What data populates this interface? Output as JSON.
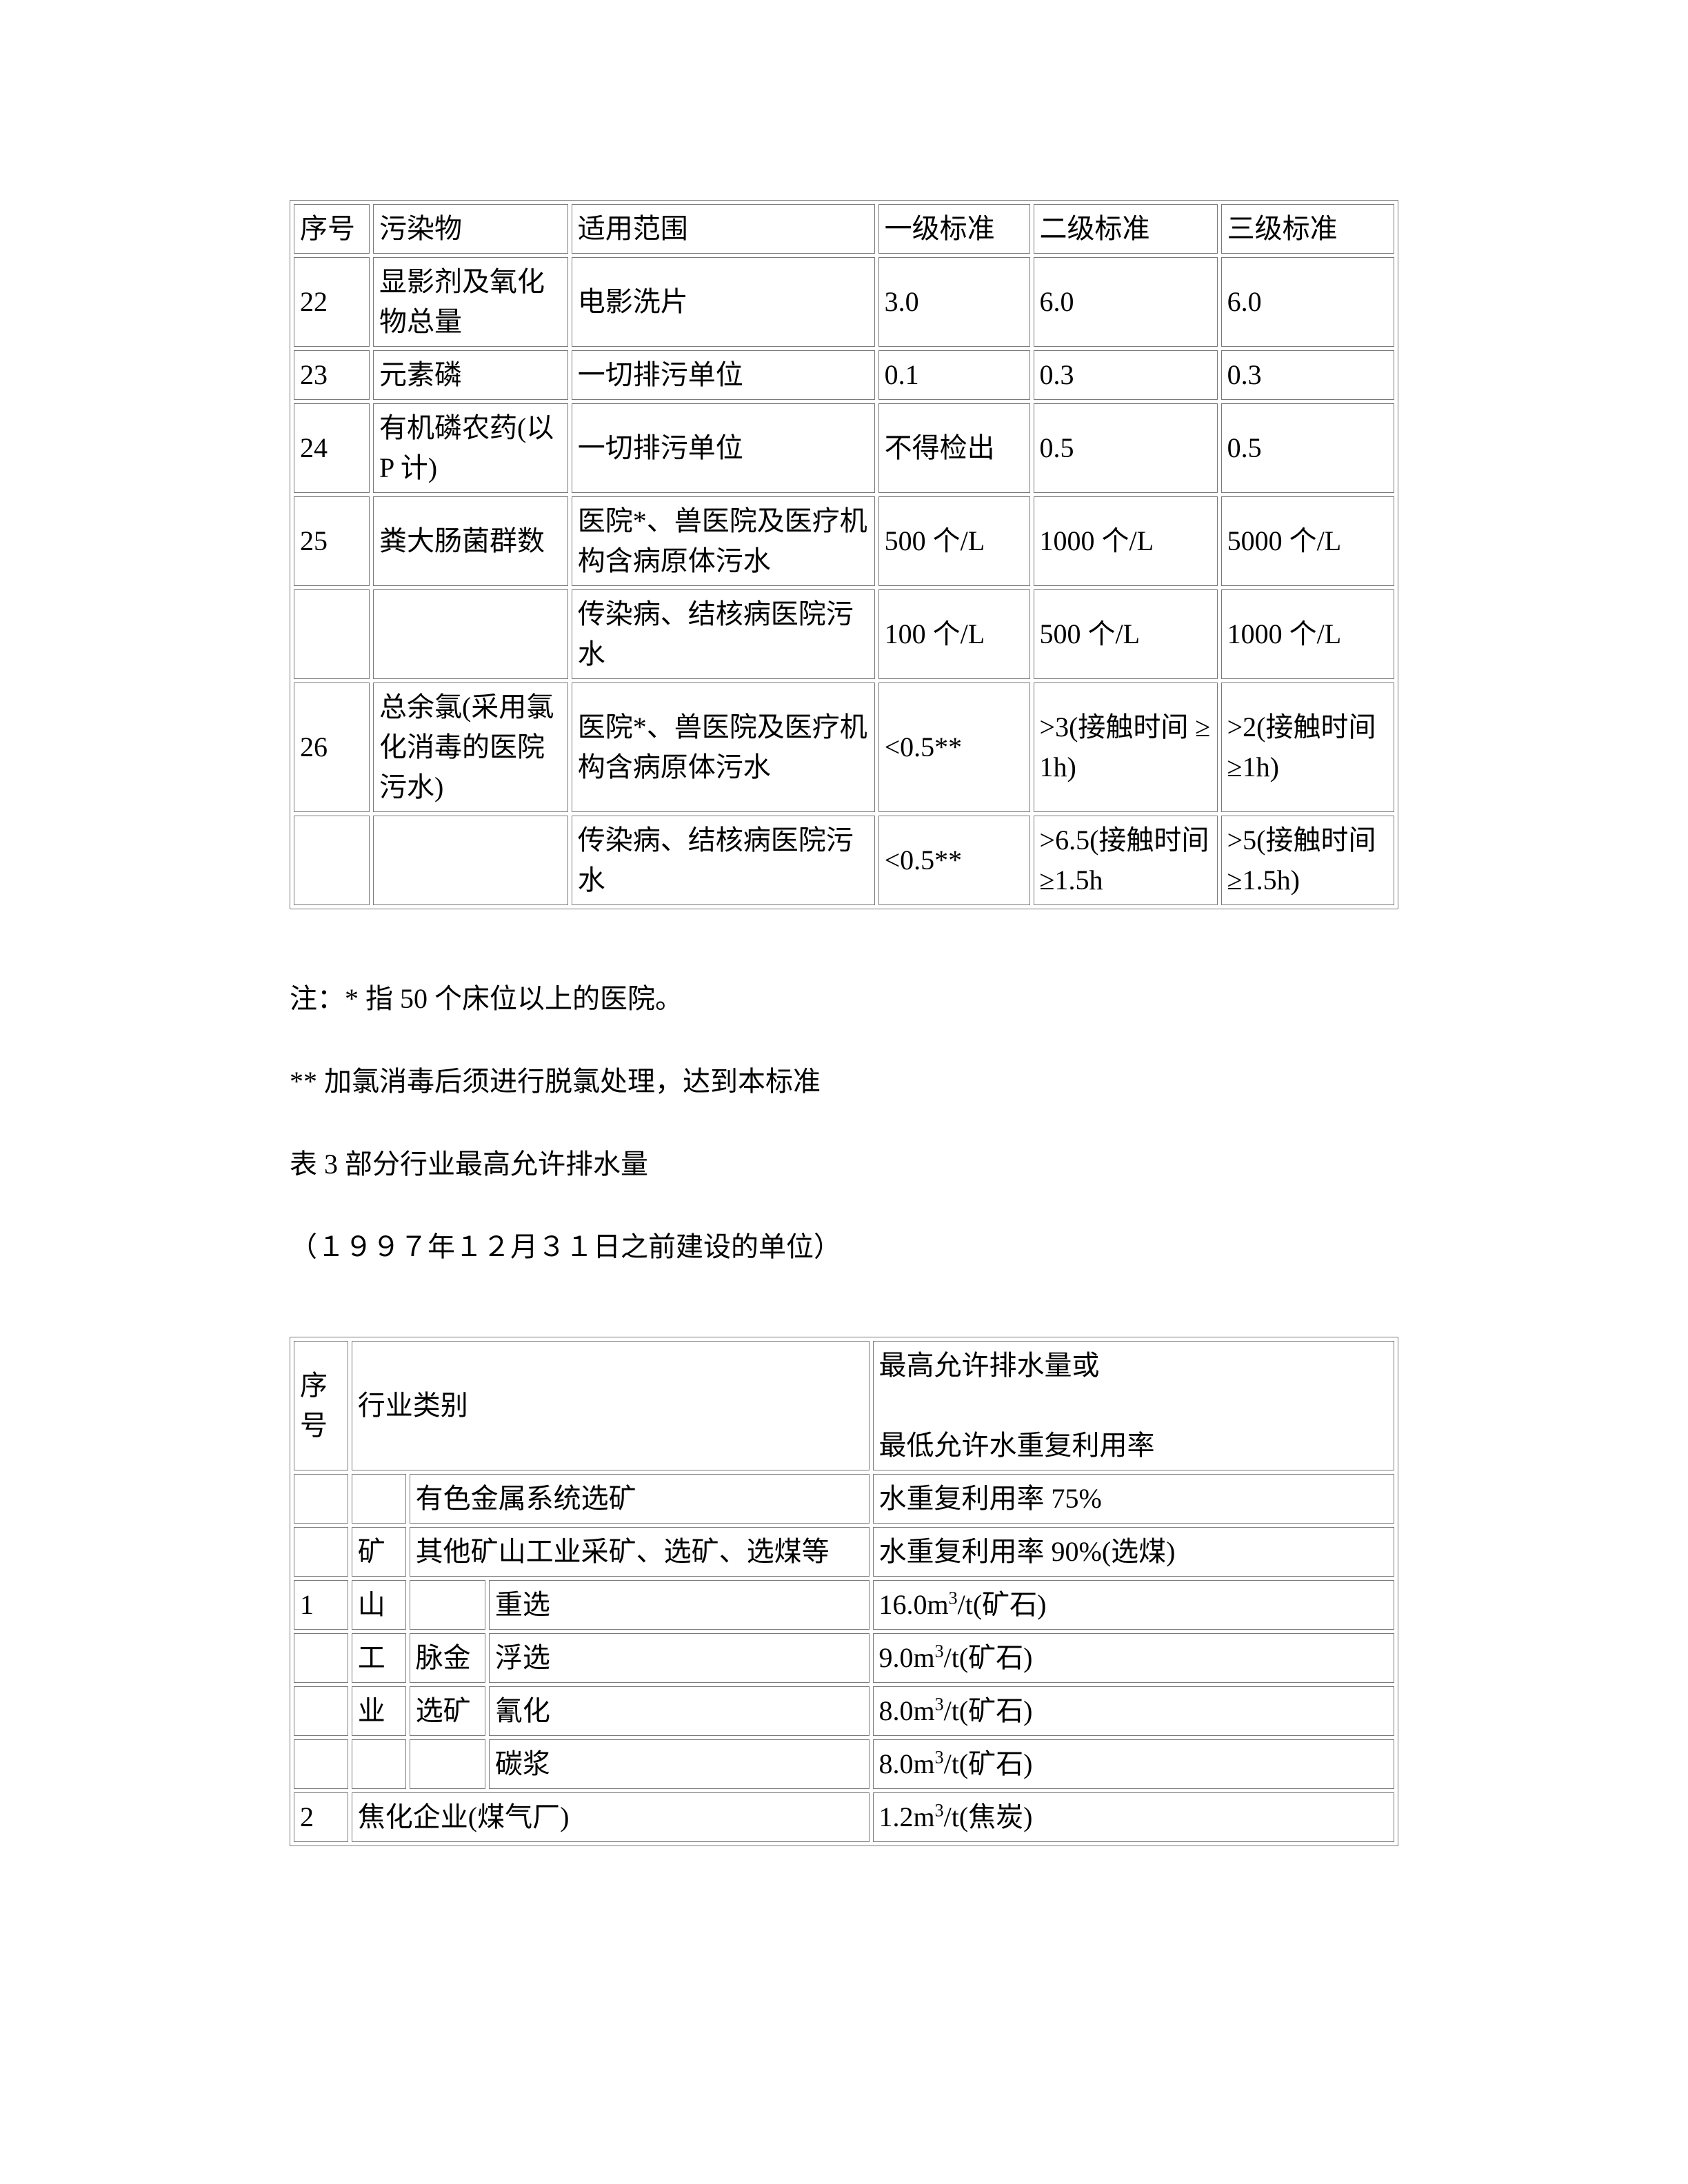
{
  "table1": {
    "border_color": "#7a7a7a",
    "background_color": "#ffffff",
    "text_color": "#000000",
    "font_size_pt": 12,
    "columns": [
      "序号",
      "污染物",
      "适用范围",
      "一级标准",
      "二级标准",
      "三级标准"
    ],
    "col_widths_pct": [
      7,
      18,
      28,
      14,
      17,
      16
    ],
    "rows": [
      [
        "22",
        "显影剂及氧化物总量",
        "电影洗片",
        "3.0",
        "6.0",
        "6.0"
      ],
      [
        "23",
        "元素磷",
        "一切排污单位",
        "0.1",
        "0.3",
        "0.3"
      ],
      [
        "24",
        "有机磷农药(以 P 计)",
        "一切排污单位",
        "不得检出",
        "0.5",
        "0.5"
      ],
      [
        "25",
        "粪大肠菌群数",
        "医院*、兽医院及医疗机构含病原体污水",
        "500 个/L",
        "1000 个/L",
        "5000 个/L"
      ],
      [
        "",
        "",
        "传染病、结核病医院污水",
        "100 个/L",
        "500 个/L",
        "1000 个/L"
      ],
      [
        "26",
        "总余氯(采用氯化消毒的医院污水)",
        "医院*、兽医院及医疗机构含病原体污水",
        "<0.5**",
        ">3(接触时间 ≥1h)",
        ">2(接触时间≥1h)"
      ],
      [
        "",
        "",
        "传染病、结核病医院污水",
        "<0.5**",
        ">6.5(接触时间≥1.5h",
        ">5(接触时间≥1.5h)"
      ]
    ]
  },
  "notes": {
    "n1": "注：* 指 50 个床位以上的医院。",
    "n2": "** 加氯消毒后须进行脱氯处理，达到本标准",
    "n3": "表 3  部分行业最高允许排水量",
    "n4": "（１９９７年１２月３１日之前建设的单位）"
  },
  "table2": {
    "border_color": "#7a7a7a",
    "background_color": "#ffffff",
    "text_color": "#000000",
    "font_size_pt": 12,
    "col_widths_pct": [
      5,
      5,
      7,
      35,
      48
    ],
    "header": {
      "c0": "序号",
      "c1": "行业类别",
      "c2_line1": "最高允许排水量或",
      "c2_line2": "最低允许水重复利用率"
    },
    "rows": [
      {
        "c0": "",
        "c1": "",
        "c2": "",
        "c3": "有色金属系统选矿",
        "c4": "水重复利用率 75%"
      },
      {
        "c0": "",
        "c1": "矿",
        "c2": "",
        "c3_colspan": 2,
        "c3": "其他矿山工业采矿、选矿、选煤等",
        "c4": "水重复利用率 90%(选煤)"
      },
      {
        "c0": "1",
        "c1": "山",
        "c2": "",
        "c3": "重选",
        "c4_html": "16.0m<sup>3</sup>/t(矿石)"
      },
      {
        "c0": "",
        "c1": "工",
        "c2": "脉金",
        "c3": "浮选",
        "c4_html": "9.0m<sup>3</sup>/t(矿石)"
      },
      {
        "c0": "",
        "c1": "业",
        "c2": "选矿",
        "c3": "氰化",
        "c4_html": "8.0m<sup>3</sup>/t(矿石)"
      },
      {
        "c0": "",
        "c1": "",
        "c2": "",
        "c3": "碳浆",
        "c4_html": "8.0m<sup>3</sup>/t(矿石)"
      },
      {
        "c0": "2",
        "c1_colspan": 3,
        "c1": "焦化企业(煤气厂)",
        "c4_html": "1.2m<sup>3</sup>/t(焦炭)"
      }
    ]
  }
}
